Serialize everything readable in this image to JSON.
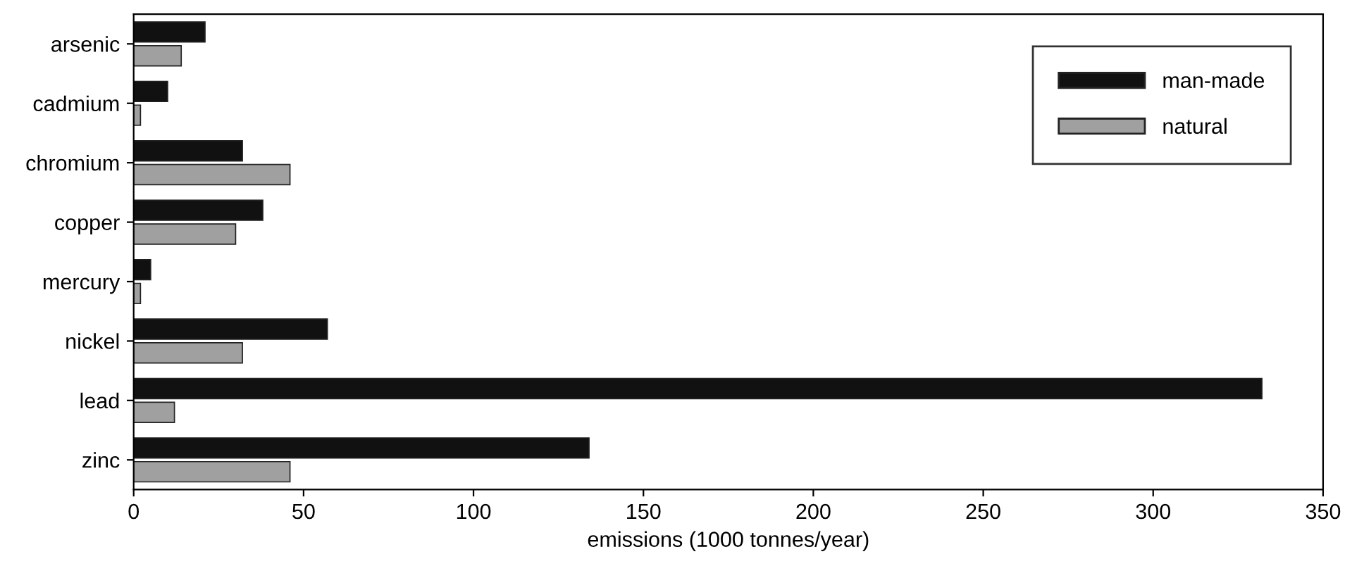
{
  "chart_data": {
    "type": "bar",
    "orientation": "horizontal",
    "xlabel": "emissions (1000 tonnes/year)",
    "categories": [
      "arsenic",
      "cadmium",
      "chromium",
      "copper",
      "mercury",
      "nickel",
      "lead",
      "zinc"
    ],
    "series": [
      {
        "name": "man-made",
        "color": "#111111",
        "values": [
          21,
          10,
          32,
          38,
          5,
          57,
          332,
          134
        ]
      },
      {
        "name": "natural",
        "color": "#a0a0a0",
        "values": [
          14,
          2,
          46,
          30,
          2,
          32,
          12,
          46
        ]
      }
    ],
    "xlim": [
      0,
      350
    ],
    "xticks": [
      0,
      50,
      100,
      150,
      200,
      250,
      300,
      350
    ],
    "grid": false,
    "legend": "top right"
  }
}
